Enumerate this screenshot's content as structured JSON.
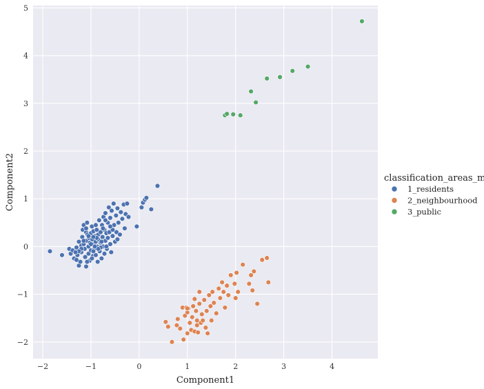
{
  "chart_data": {
    "type": "scatter",
    "title": "",
    "xlabel": "Component1",
    "ylabel": "Component2",
    "xlim": [
      -2.2,
      4.95
    ],
    "ylim": [
      -2.35,
      5.05
    ],
    "xticks": [
      -2,
      -1,
      0,
      1,
      2,
      3,
      4
    ],
    "yticks": [
      -2,
      -1,
      0,
      1,
      2,
      3,
      4,
      5
    ],
    "xtick_labels": [
      "−2",
      "−1",
      "0",
      "1",
      "2",
      "3",
      "4"
    ],
    "ytick_labels": [
      "−2",
      "−1",
      "0",
      "1",
      "2",
      "3",
      "4",
      "5"
    ],
    "grid": true,
    "legend": {
      "title": "classification_areas_m",
      "placement": "right"
    },
    "series": [
      {
        "name": "1_residents",
        "color": "#4c72b0",
        "points": [
          [
            -1.85,
            -0.1
          ],
          [
            -1.6,
            -0.18
          ],
          [
            -1.45,
            -0.05
          ],
          [
            -1.42,
            -0.15
          ],
          [
            -1.38,
            -0.08
          ],
          [
            -1.35,
            -0.25
          ],
          [
            -1.3,
            -0.02
          ],
          [
            -1.28,
            -0.18
          ],
          [
            -1.25,
            0.1
          ],
          [
            -1.25,
            -0.4
          ],
          [
            -1.22,
            -0.32
          ],
          [
            -1.2,
            0.02
          ],
          [
            -1.2,
            -0.12
          ],
          [
            -1.18,
            0.2
          ],
          [
            -1.17,
            0.35
          ],
          [
            -1.15,
            0.45
          ],
          [
            -1.15,
            0.05
          ],
          [
            -1.13,
            -0.05
          ],
          [
            -1.12,
            -0.22
          ],
          [
            -1.1,
            0.3
          ],
          [
            -1.1,
            0.12
          ],
          [
            -1.1,
            -0.42
          ],
          [
            -1.08,
            0.5
          ],
          [
            -1.07,
            0.25
          ],
          [
            -1.05,
            0.0
          ],
          [
            -1.05,
            -0.15
          ],
          [
            -1.04,
            0.18
          ],
          [
            -1.03,
            -0.3
          ],
          [
            -1.02,
            0.08
          ],
          [
            -1.0,
            0.28
          ],
          [
            -1.0,
            -0.08
          ],
          [
            -0.98,
            0.42
          ],
          [
            -0.97,
            0.15
          ],
          [
            -0.96,
            -0.2
          ],
          [
            -0.95,
            0.05
          ],
          [
            -0.95,
            0.32
          ],
          [
            -0.93,
            -0.05
          ],
          [
            -0.92,
            0.22
          ],
          [
            -0.9,
            0.1
          ],
          [
            -0.9,
            -0.18
          ],
          [
            -0.88,
            0.35
          ],
          [
            -0.87,
            0.0
          ],
          [
            -0.86,
            -0.32
          ],
          [
            -0.85,
            0.15
          ],
          [
            -0.85,
            0.25
          ],
          [
            -0.83,
            0.55
          ],
          [
            -0.82,
            -0.1
          ],
          [
            -0.8,
            0.3
          ],
          [
            -0.8,
            0.08
          ],
          [
            -0.78,
            -0.25
          ],
          [
            -0.77,
            0.45
          ],
          [
            -0.76,
            0.2
          ],
          [
            -0.75,
            0.0
          ],
          [
            -0.74,
            0.62
          ],
          [
            -0.72,
            -0.15
          ],
          [
            -0.72,
            0.35
          ],
          [
            -0.7,
            0.12
          ],
          [
            -0.7,
            0.7
          ],
          [
            -0.68,
            0.28
          ],
          [
            -0.67,
            -0.05
          ],
          [
            -0.65,
            0.5
          ],
          [
            -0.63,
            0.82
          ],
          [
            -0.62,
            0.3
          ],
          [
            -0.6,
            0.05
          ],
          [
            -0.6,
            0.6
          ],
          [
            -0.58,
            -0.12
          ],
          [
            -0.57,
            0.75
          ],
          [
            -0.55,
            0.22
          ],
          [
            -0.53,
            0.9
          ],
          [
            -0.52,
            0.45
          ],
          [
            -0.5,
            0.1
          ],
          [
            -0.48,
            0.65
          ],
          [
            -0.47,
            0.3
          ],
          [
            -0.45,
            0.8
          ],
          [
            -0.43,
            0.5
          ],
          [
            -0.4,
            0.25
          ],
          [
            -0.38,
            0.72
          ],
          [
            -0.35,
            0.58
          ],
          [
            -0.32,
            0.88
          ],
          [
            -0.3,
            0.38
          ],
          [
            -0.28,
            0.68
          ],
          [
            -0.25,
            0.9
          ],
          [
            -0.22,
            0.62
          ],
          [
            -0.05,
            0.42
          ],
          [
            0.05,
            0.82
          ],
          [
            0.08,
            0.92
          ],
          [
            0.12,
            0.98
          ],
          [
            0.15,
            1.02
          ],
          [
            0.25,
            0.78
          ],
          [
            0.38,
            1.27
          ],
          [
            -1.2,
            -0.05
          ],
          [
            -1.1,
            0.38
          ],
          [
            -0.95,
            -0.1
          ],
          [
            -0.9,
            0.45
          ],
          [
            -0.8,
            -0.02
          ],
          [
            -0.75,
            0.38
          ],
          [
            -0.65,
            0.18
          ],
          [
            -0.55,
            0.35
          ],
          [
            -1.05,
            0.22
          ],
          [
            -1.0,
            0.05
          ],
          [
            -0.85,
            -0.05
          ],
          [
            -0.7,
            0.55
          ],
          [
            -1.15,
            0.12
          ],
          [
            -1.25,
            -0.1
          ],
          [
            -0.92,
            0.0
          ],
          [
            -0.6,
            0.42
          ],
          [
            -0.45,
            0.15
          ],
          [
            -1.3,
            -0.28
          ],
          [
            -1.32,
            -0.12
          ],
          [
            -0.98,
            -0.25
          ],
          [
            -0.88,
            0.18
          ],
          [
            -0.78,
            0.1
          ],
          [
            -0.68,
            0.0
          ],
          [
            -1.08,
            -0.32
          ],
          [
            -0.95,
            0.2
          ]
        ]
      },
      {
        "name": "2_neighbourhood",
        "color": "#dd8452",
        "points": [
          [
            0.55,
            -1.58
          ],
          [
            0.6,
            -1.68
          ],
          [
            0.68,
            -2.0
          ],
          [
            0.78,
            -1.65
          ],
          [
            0.8,
            -1.52
          ],
          [
            0.85,
            -1.72
          ],
          [
            0.9,
            -1.28
          ],
          [
            0.92,
            -1.95
          ],
          [
            0.95,
            -1.45
          ],
          [
            0.98,
            -1.28
          ],
          [
            1.0,
            -1.38
          ],
          [
            1.0,
            -1.82
          ],
          [
            1.02,
            -1.3
          ],
          [
            1.05,
            -1.6
          ],
          [
            1.08,
            -1.75
          ],
          [
            1.1,
            -1.48
          ],
          [
            1.12,
            -1.25
          ],
          [
            1.15,
            -1.78
          ],
          [
            1.15,
            -1.1
          ],
          [
            1.18,
            -1.35
          ],
          [
            1.2,
            -1.55
          ],
          [
            1.22,
            -1.8
          ],
          [
            1.25,
            -1.2
          ],
          [
            1.25,
            -0.95
          ],
          [
            1.28,
            -1.6
          ],
          [
            1.3,
            -1.42
          ],
          [
            1.32,
            -1.55
          ],
          [
            1.35,
            -1.12
          ],
          [
            1.38,
            -1.7
          ],
          [
            1.4,
            -1.35
          ],
          [
            1.42,
            -1.82
          ],
          [
            1.45,
            -1.02
          ],
          [
            1.48,
            -1.25
          ],
          [
            1.5,
            -1.55
          ],
          [
            1.52,
            -0.95
          ],
          [
            1.55,
            -1.18
          ],
          [
            1.6,
            -1.4
          ],
          [
            1.65,
            -0.88
          ],
          [
            1.68,
            -1.08
          ],
          [
            1.72,
            -0.75
          ],
          [
            1.75,
            -0.95
          ],
          [
            1.78,
            -1.28
          ],
          [
            1.82,
            -0.82
          ],
          [
            1.85,
            -1.02
          ],
          [
            1.9,
            -0.6
          ],
          [
            1.98,
            -0.78
          ],
          [
            2.0,
            -1.08
          ],
          [
            2.02,
            -0.55
          ],
          [
            2.05,
            -0.95
          ],
          [
            2.15,
            -0.38
          ],
          [
            2.28,
            -0.78
          ],
          [
            2.32,
            -0.6
          ],
          [
            2.35,
            -0.92
          ],
          [
            2.38,
            -0.52
          ],
          [
            2.45,
            -1.2
          ],
          [
            2.55,
            -0.28
          ],
          [
            2.65,
            -0.24
          ],
          [
            2.68,
            -0.75
          ],
          [
            1.2,
            -1.65
          ],
          [
            1.0,
            -1.3
          ]
        ]
      },
      {
        "name": "3_public",
        "color": "#55a868",
        "points": [
          [
            1.78,
            2.75
          ],
          [
            1.82,
            2.78
          ],
          [
            1.95,
            2.77
          ],
          [
            2.1,
            2.75
          ],
          [
            2.32,
            3.25
          ],
          [
            2.42,
            3.02
          ],
          [
            2.65,
            3.52
          ],
          [
            2.92,
            3.55
          ],
          [
            3.18,
            3.68
          ],
          [
            3.5,
            3.77
          ],
          [
            4.62,
            4.72
          ]
        ]
      }
    ]
  }
}
